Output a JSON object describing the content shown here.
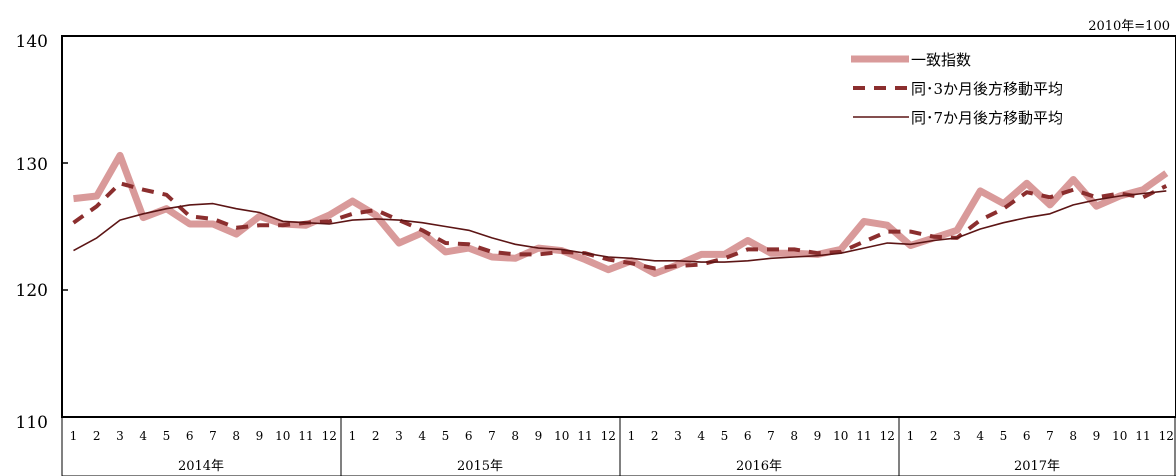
{
  "chart_data": {
    "type": "line",
    "note": "2010年=100",
    "ylim": [
      110,
      140
    ],
    "yticks": [
      "110",
      "120",
      "130",
      "140"
    ],
    "months": [
      "1",
      "2",
      "3",
      "4",
      "5",
      "6",
      "7",
      "8",
      "9",
      "10",
      "11",
      "12",
      "1",
      "2",
      "3",
      "4",
      "5",
      "6",
      "7",
      "8",
      "9",
      "10",
      "11",
      "12",
      "1",
      "2",
      "3",
      "4",
      "5",
      "6",
      "7",
      "8",
      "9",
      "10",
      "11",
      "12",
      "1",
      "2",
      "3",
      "4",
      "5",
      "6",
      "7",
      "8",
      "9",
      "10",
      "11",
      "12"
    ],
    "years": [
      "2014年",
      "2015年",
      "2016年",
      "2017年"
    ],
    "grid": false,
    "legend_position": "top-right",
    "series": [
      {
        "name": "一致指数",
        "color": "#d99a9a",
        "style": "thick",
        "values": [
          127.2,
          127.4,
          130.6,
          125.7,
          126.4,
          125.2,
          125.2,
          124.4,
          125.8,
          125.2,
          125.1,
          125.9,
          127.0,
          125.9,
          123.7,
          124.5,
          123.0,
          123.3,
          122.6,
          122.5,
          123.3,
          123.1,
          122.4,
          121.6,
          122.3,
          121.3,
          122.0,
          122.8,
          122.8,
          123.9,
          122.9,
          122.9,
          122.8,
          123.2,
          125.4,
          125.1,
          123.5,
          124.1,
          124.7,
          127.8,
          126.8,
          128.4,
          126.7,
          128.7,
          126.6,
          127.4,
          127.9,
          129.2
        ]
      },
      {
        "name": "同･3か月後方移動平均",
        "color": "#8b2e2e",
        "style": "dashed",
        "values": [
          125.3,
          126.6,
          128.4,
          127.9,
          127.5,
          125.8,
          125.6,
          124.9,
          125.1,
          125.1,
          125.3,
          125.4,
          126.0,
          126.3,
          125.5,
          124.7,
          123.7,
          123.6,
          123.0,
          122.8,
          122.8,
          123.0,
          122.9,
          122.4,
          122.1,
          121.7,
          121.9,
          122.0,
          122.5,
          123.2,
          123.2,
          123.2,
          122.9,
          123.0,
          123.8,
          124.6,
          124.6,
          124.2,
          124.1,
          125.5,
          126.4,
          127.7,
          127.3,
          127.9,
          127.3,
          127.6,
          127.3,
          128.2
        ]
      },
      {
        "name": "同･7か月後方移動平均",
        "color": "#5c1515",
        "style": "thin",
        "values": [
          123.1,
          124.1,
          125.5,
          126.0,
          126.4,
          126.7,
          126.8,
          126.4,
          126.1,
          125.4,
          125.3,
          125.2,
          125.5,
          125.6,
          125.5,
          125.3,
          125.0,
          124.7,
          124.1,
          123.6,
          123.3,
          123.2,
          122.9,
          122.6,
          122.5,
          122.3,
          122.3,
          122.2,
          122.2,
          122.3,
          122.5,
          122.6,
          122.7,
          122.9,
          123.3,
          123.7,
          123.6,
          123.9,
          124.1,
          124.8,
          125.3,
          125.7,
          126.0,
          126.7,
          127.1,
          127.4,
          127.6,
          127.8
        ]
      }
    ]
  }
}
